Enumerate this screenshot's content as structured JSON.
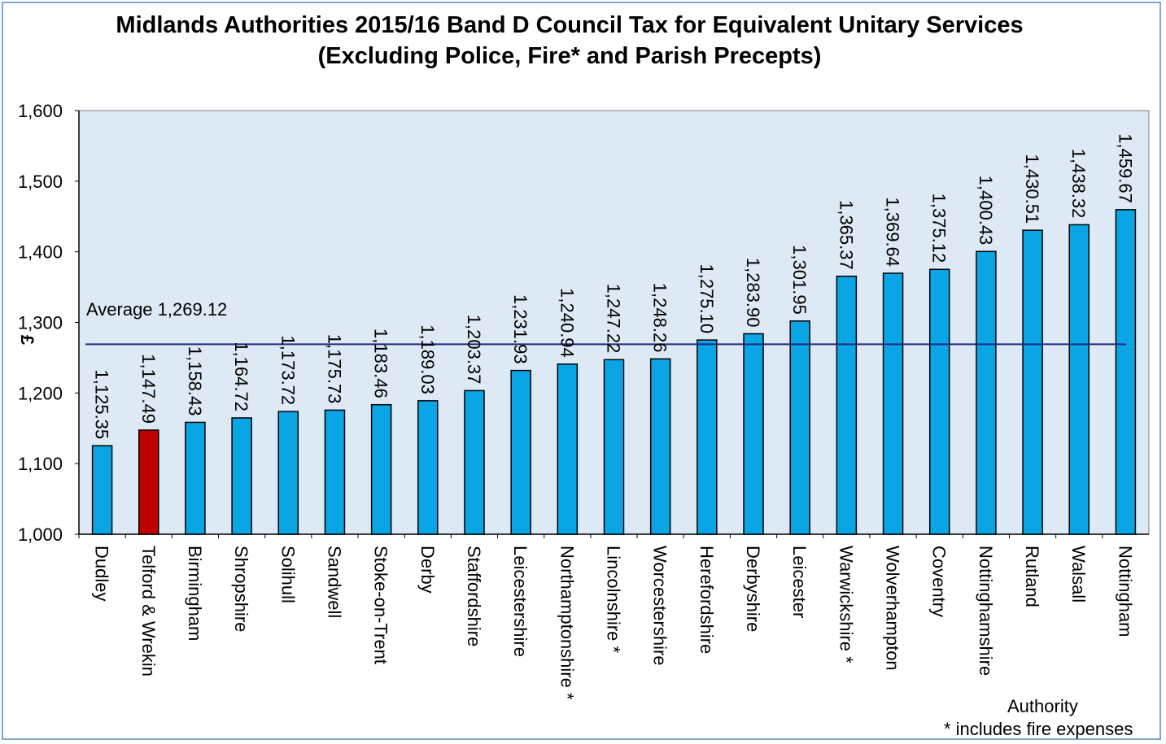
{
  "chart_data": {
    "type": "bar",
    "title": "Midlands Authorities 2015/16 Band D Council Tax for Equivalent Unitary Services",
    "subtitle": "(Excluding Police, Fire* and Parish Precepts)",
    "ylabel": "£",
    "xlabel": "Authority",
    "footnote": "* includes fire expenses",
    "ylim": [
      1000,
      1600
    ],
    "yticks": [
      "1,000",
      "1,100",
      "1,200",
      "1,300",
      "1,400",
      "1,500",
      "1,600"
    ],
    "ytick_values": [
      1000,
      1100,
      1200,
      1300,
      1400,
      1500,
      1600
    ],
    "categories": [
      "Dudley",
      "Telford & Wrekin",
      "Birmingham",
      "Shropshire",
      "Solihull",
      "Sandwell",
      "Stoke-on-Trent",
      "Derby",
      "Staffordshire",
      "Leicestershire",
      "Northamptonshire *",
      "Lincolnshire *",
      "Worcestershire",
      "Herefordshire",
      "Derbyshire",
      "Leicester",
      "Warwickshire *",
      "Wolverhampton",
      "Coventry",
      "Nottinghamshire",
      "Rutland",
      "Walsall",
      "Nottingham"
    ],
    "values": [
      1125.35,
      1147.49,
      1158.43,
      1164.72,
      1173.72,
      1175.73,
      1183.46,
      1189.03,
      1203.37,
      1231.93,
      1240.94,
      1247.22,
      1248.26,
      1275.1,
      1283.9,
      1301.95,
      1365.37,
      1369.64,
      1375.12,
      1400.43,
      1430.51,
      1438.32,
      1459.67
    ],
    "data_labels": [
      "1,125.35",
      "1,147.49",
      "1,158.43",
      "1,164.72",
      "1,173.72",
      "1,175.73",
      "1,183.46",
      "1,189.03",
      "1,203.37",
      "1,231.93",
      "1,240.94",
      "1,247.22",
      "1,248.26",
      "1,275.10",
      "1,283.90",
      "1,301.95",
      "1,365.37",
      "1,369.64",
      "1,375.12",
      "1,400.43",
      "1,430.51",
      "1,438.32",
      "1,459.67"
    ],
    "highlight_index": 1,
    "average": {
      "value": 1269.12,
      "label": "Average 1,269.12"
    },
    "grid": false,
    "colors": {
      "bar": "#0aa5e4",
      "highlight": "#c00000",
      "average_line": "#1f2a80",
      "plot_bg": "#dde9f4",
      "frame": "#7fa7d6"
    }
  }
}
